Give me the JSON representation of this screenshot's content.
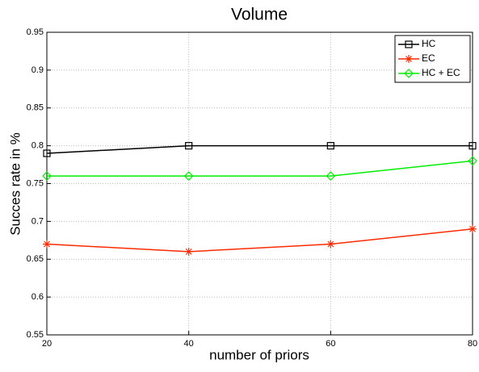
{
  "chart_data": {
    "type": "line",
    "title": "Volume",
    "x_label": "number of priors",
    "y_label": "Succes rate in %",
    "x": [
      20,
      40,
      60,
      80
    ],
    "series": [
      {
        "name": "HC",
        "color": "#000000",
        "marker": "square",
        "values": [
          0.79,
          0.8,
          0.8,
          0.8
        ]
      },
      {
        "name": "EC",
        "color": "#ff2a00",
        "marker": "star",
        "values": [
          0.67,
          0.66,
          0.67,
          0.69
        ]
      },
      {
        "name": "HC + EC",
        "color": "#00ee00",
        "marker": "diamond",
        "values": [
          0.76,
          0.76,
          0.76,
          0.78
        ]
      }
    ],
    "xlim": [
      20,
      80
    ],
    "xticks": [
      20,
      40,
      60,
      80
    ],
    "ylim": [
      0.55,
      0.95
    ],
    "yticks": [
      0.55,
      0.6,
      0.65,
      0.7,
      0.75,
      0.8,
      0.85,
      0.9,
      0.95
    ],
    "grid": true,
    "legend": "upper-right"
  }
}
